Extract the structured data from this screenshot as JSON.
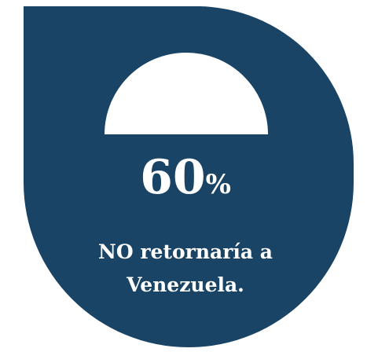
{
  "stat": {
    "value": "60",
    "unit": "%",
    "caption_line1": "NO retornaría a",
    "caption_line2": "Venezuela."
  },
  "colors": {
    "shape": "#1a4466",
    "arc": "#ffffff",
    "text": "#ffffff"
  }
}
